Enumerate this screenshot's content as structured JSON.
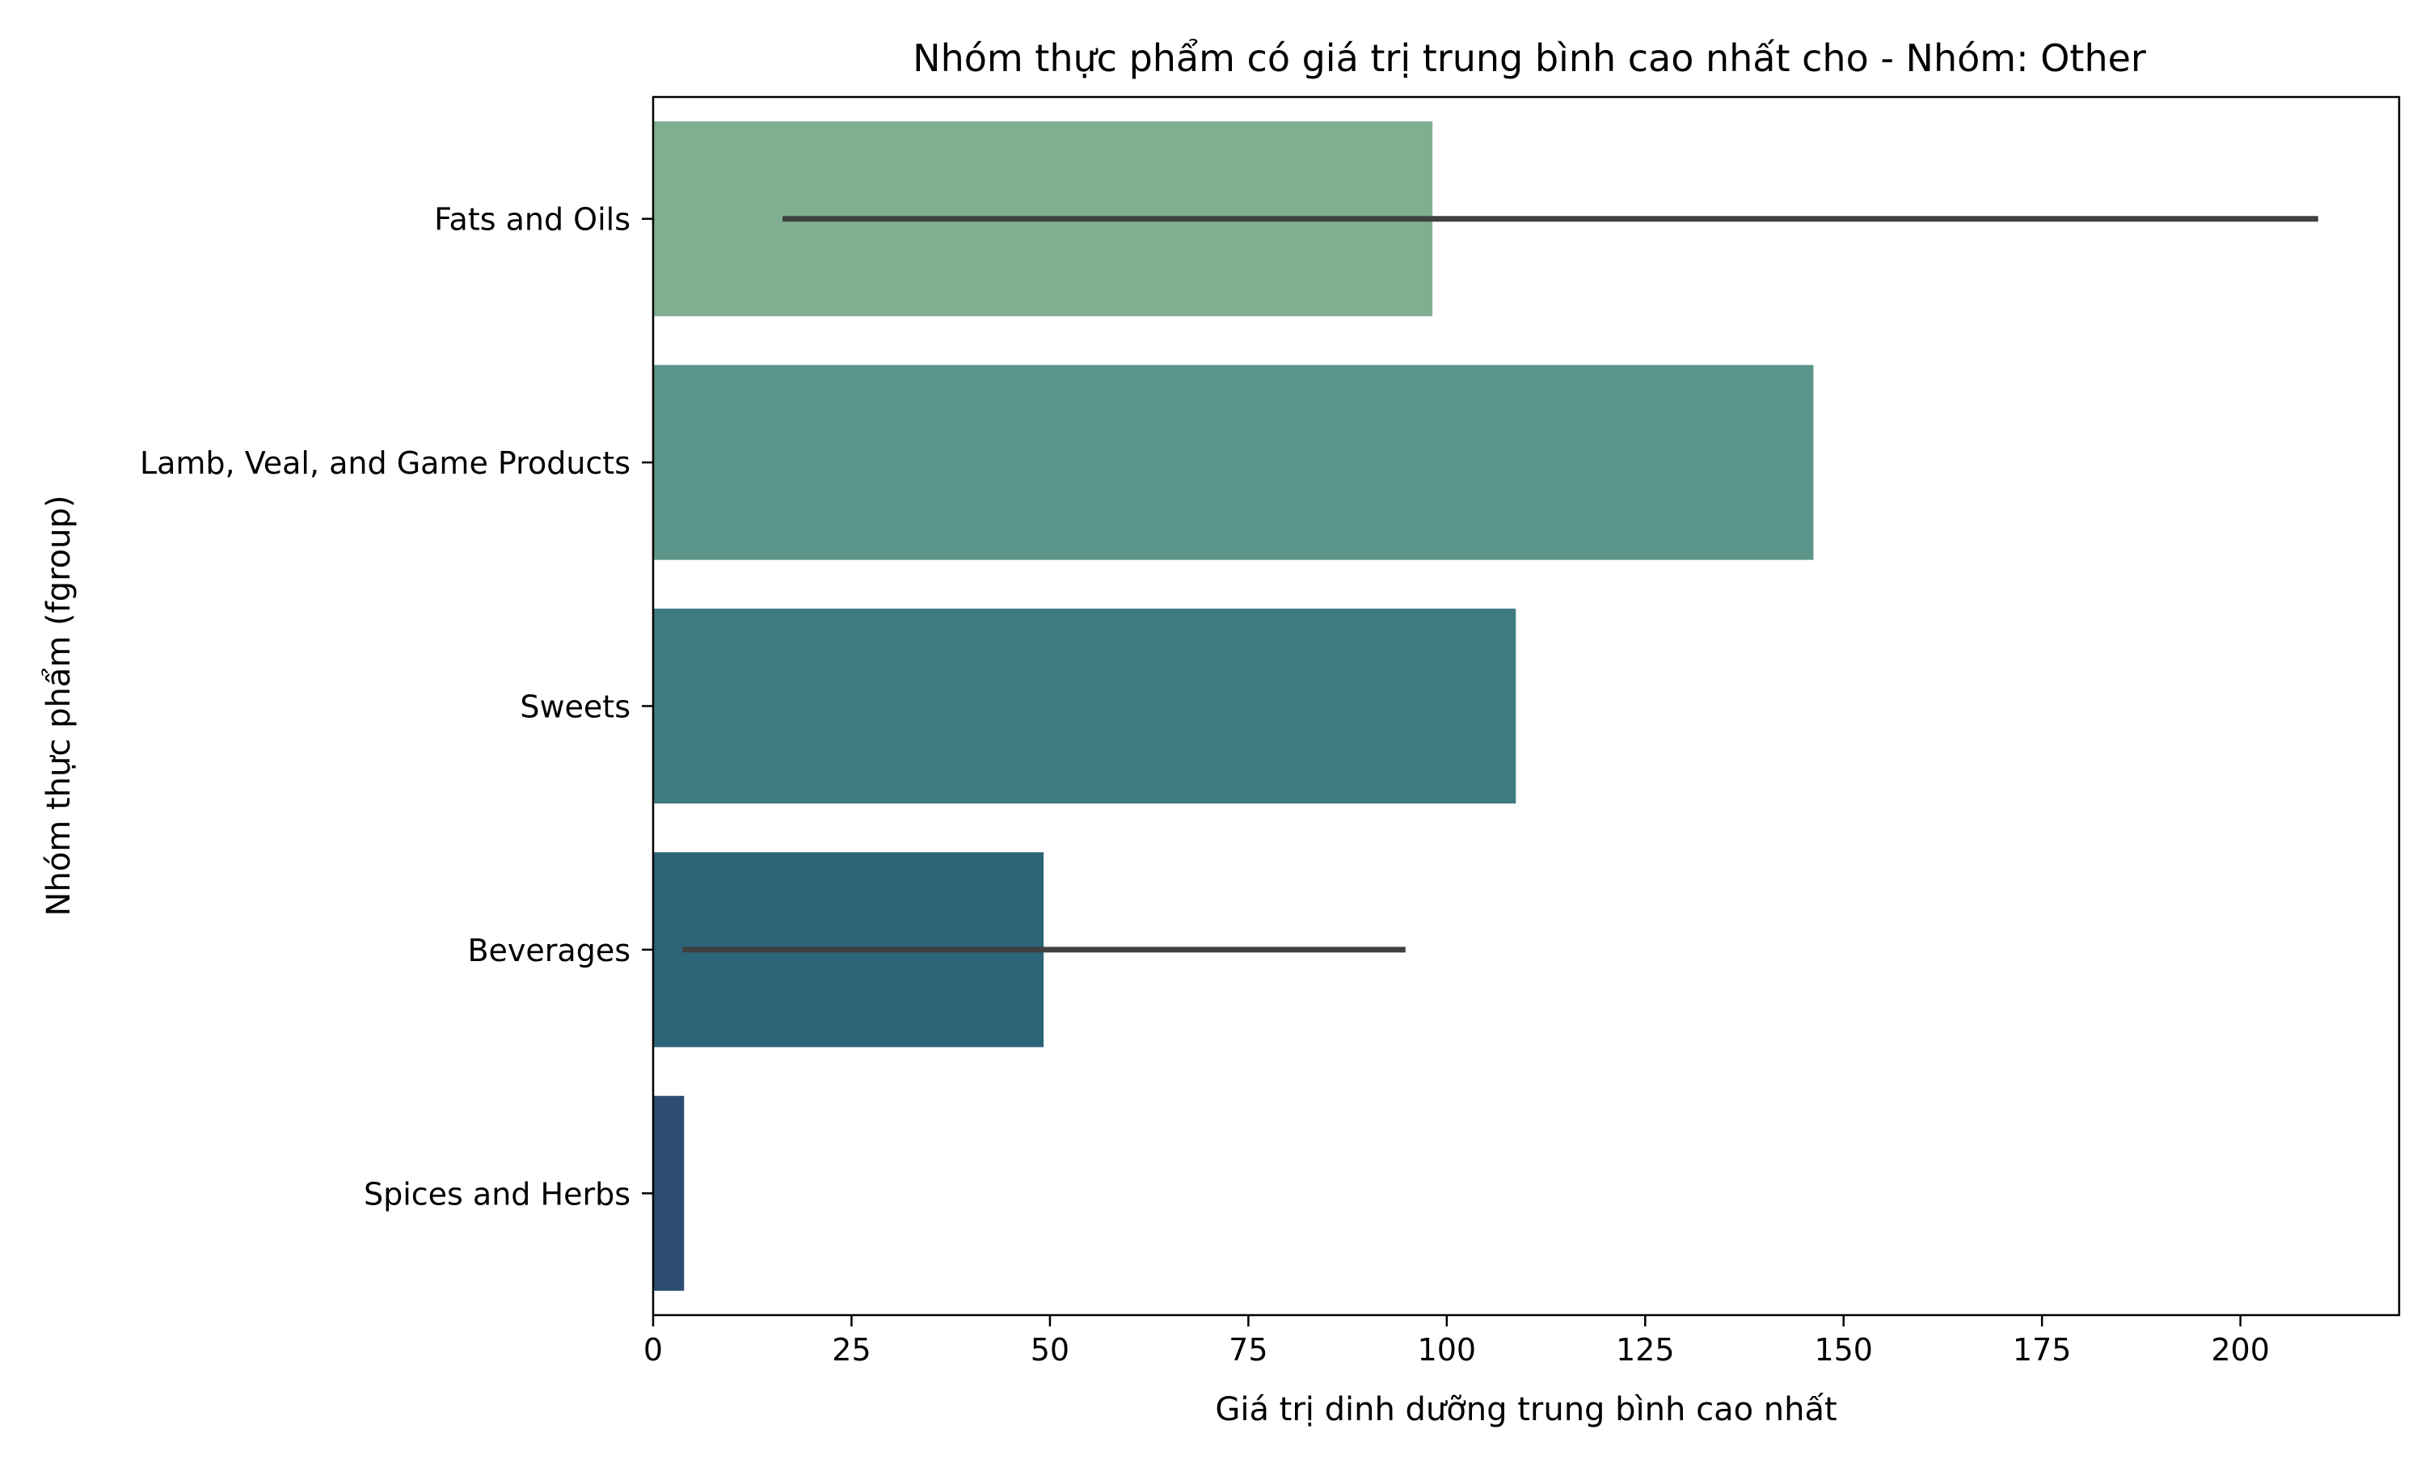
{
  "chart_data": {
    "type": "bar",
    "orientation": "horizontal",
    "title": "Nhóm thực phẩm có giá trị trung bình cao nhất cho - Nhóm: Other",
    "xlabel": "Giá trị dinh dưỡng trung bình cao nhất",
    "ylabel": "Nhóm thực phẩm (fgroup)",
    "categories": [
      "Fats and Oils",
      "Lamb, Veal, and Game Products",
      "Sweets",
      "Beverages",
      "Spices and Herbs"
    ],
    "values": [
      98.2,
      146.2,
      108.7,
      49.2,
      3.9
    ],
    "error_bars": [
      {
        "category": "Fats and Oils",
        "low": 16.3,
        "high": 209.8
      },
      {
        "category": "Beverages",
        "low": 3.7,
        "high": 94.8
      }
    ],
    "colors": [
      "#7faf91",
      "#5b958a",
      "#3e7b80",
      "#2c6578",
      "#2c4c72"
    ],
    "error_bar_color": "#404040",
    "xlim": [
      0,
      220
    ],
    "xticks": [
      0,
      25,
      50,
      75,
      100,
      125,
      150,
      175,
      200
    ],
    "grid": false,
    "legend": "none"
  }
}
